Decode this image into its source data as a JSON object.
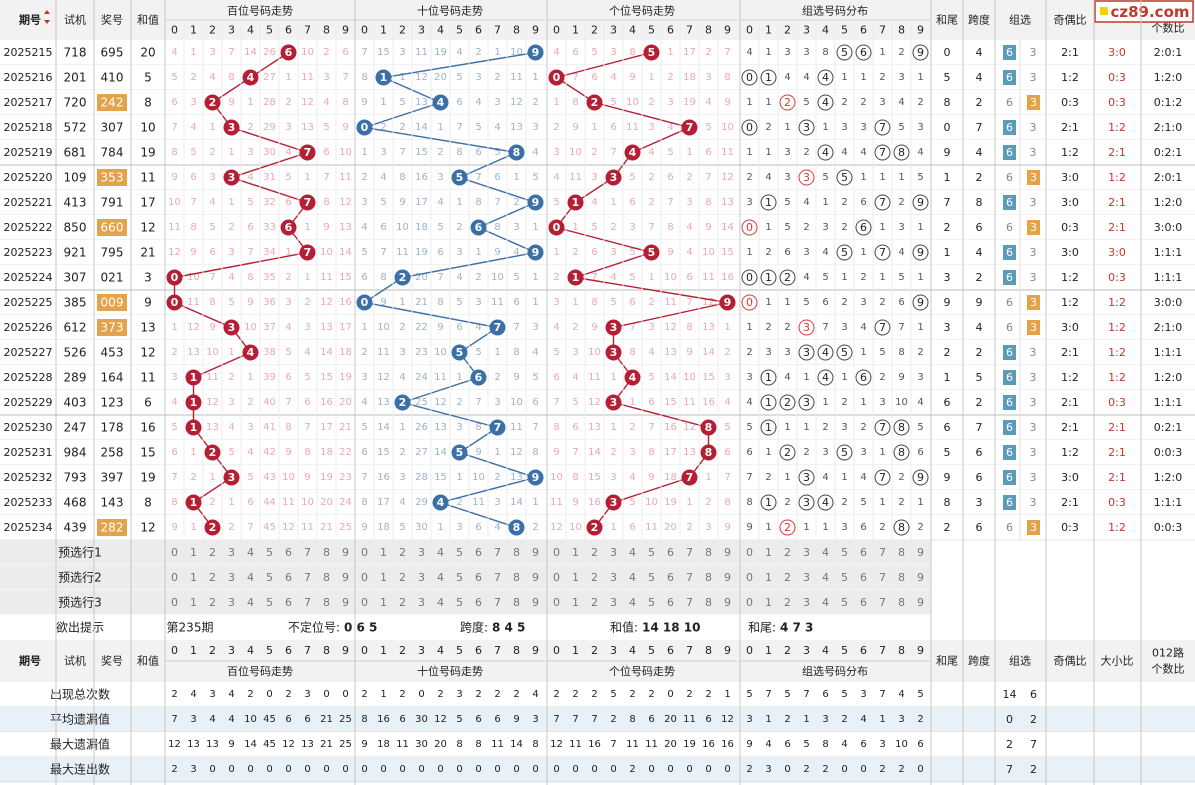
{
  "watermark": "cz89.com",
  "header_top": {
    "period": "期号",
    "trial": "试机",
    "prize": "奖号",
    "sum": "和值",
    "hundreds": "百位号码走势",
    "tens": "十位号码走势",
    "units": "个位号码走势",
    "group": "组选号码分布",
    "tail": "和尾",
    "span": "跨度",
    "group_type": "组选",
    "odd_even": "奇偶比",
    "big_small": "大小比",
    "route": "012路个数比"
  },
  "digits": [
    "0",
    "1",
    "2",
    "3",
    "4",
    "5",
    "6",
    "7",
    "8",
    "9"
  ],
  "rows": [
    {
      "p": "2025215",
      "t": "718",
      "a": "695",
      "s": "20",
      "h": [
        4,
        1,
        3,
        7,
        14,
        26,
        6,
        10,
        2,
        6
      ],
      "te": [
        7,
        15,
        3,
        11,
        19,
        4,
        2,
        1,
        10,
        9
      ],
      "u": [
        4,
        6,
        5,
        3,
        8,
        5,
        1,
        17,
        2,
        7
      ],
      "g": [
        4,
        1,
        3,
        3,
        8,
        5,
        6,
        1,
        2,
        9
      ],
      "gc": [
        5,
        6,
        9
      ],
      "tail": "0",
      "span": "4",
      "gt": "6",
      "oe": "2:1",
      "bs": "3:0",
      "r": "2:0:1"
    },
    {
      "p": "2025216",
      "t": "201",
      "a": "410",
      "s": "5",
      "h": [
        5,
        2,
        4,
        8,
        4,
        27,
        1,
        11,
        3,
        7
      ],
      "te": [
        8,
        1,
        1,
        12,
        20,
        5,
        3,
        2,
        11,
        1
      ],
      "u": [
        0,
        7,
        6,
        4,
        9,
        1,
        2,
        18,
        3,
        8
      ],
      "g": [
        0,
        1,
        4,
        4,
        4,
        1,
        1,
        2,
        3,
        1
      ],
      "gc": [
        0,
        1,
        4
      ],
      "tail": "5",
      "span": "4",
      "gt": "6",
      "oe": "1:2",
      "bs": "0:3",
      "r": "1:2:0"
    },
    {
      "p": "2025217",
      "t": "720",
      "a": "242",
      "s": "8",
      "h": [
        6,
        3,
        2,
        9,
        1,
        28,
        2,
        12,
        4,
        8
      ],
      "te": [
        9,
        1,
        5,
        13,
        4,
        6,
        4,
        3,
        12,
        2
      ],
      "u": [
        1,
        8,
        2,
        5,
        10,
        2,
        3,
        19,
        4,
        9
      ],
      "g": [
        1,
        1,
        2,
        5,
        4,
        2,
        2,
        3,
        4,
        2
      ],
      "gc": [
        2,
        4
      ],
      "tail": "8",
      "span": "2",
      "gt": "3",
      "oe": "0:3",
      "bs": "0:3",
      "r": "0:1:2",
      "hl": true
    },
    {
      "p": "2025218",
      "t": "572",
      "a": "307",
      "s": "10",
      "h": [
        7,
        4,
        1,
        3,
        2,
        29,
        3,
        13,
        5,
        9
      ],
      "te": [
        0,
        2,
        2,
        14,
        1,
        7,
        5,
        4,
        13,
        3
      ],
      "u": [
        2,
        9,
        1,
        6,
        11,
        3,
        4,
        7,
        5,
        10
      ],
      "g": [
        0,
        2,
        1,
        3,
        1,
        3,
        3,
        7,
        5,
        3
      ],
      "gc": [
        0,
        3,
        7
      ],
      "tail": "0",
      "span": "7",
      "gt": "6",
      "oe": "2:1",
      "bs": "1:2",
      "r": "2:1:0"
    },
    {
      "p": "2025219",
      "t": "681",
      "a": "784",
      "s": "19",
      "h": [
        8,
        5,
        2,
        1,
        3,
        30,
        4,
        7,
        6,
        10
      ],
      "te": [
        1,
        3,
        7,
        15,
        2,
        8,
        6,
        5,
        8,
        4
      ],
      "u": [
        3,
        10,
        2,
        7,
        4,
        4,
        5,
        1,
        6,
        11
      ],
      "g": [
        1,
        1,
        3,
        2,
        4,
        4,
        4,
        7,
        8,
        4
      ],
      "gc": [
        4,
        7,
        8
      ],
      "tail": "9",
      "span": "4",
      "gt": "6",
      "oe": "1:2",
      "bs": "2:1",
      "r": "0:2:1"
    },
    {
      "p": "2025220",
      "t": "109",
      "a": "353",
      "s": "11",
      "h": [
        9,
        6,
        3,
        3,
        4,
        31,
        5,
        1,
        7,
        11
      ],
      "te": [
        2,
        4,
        8,
        16,
        3,
        5,
        7,
        6,
        1,
        5
      ],
      "u": [
        4,
        11,
        3,
        3,
        5,
        2,
        6,
        2,
        7,
        12
      ],
      "g": [
        2,
        4,
        3,
        3,
        5,
        5,
        1,
        1,
        1,
        5
      ],
      "gc": [
        3,
        5
      ],
      "tail": "1",
      "span": "2",
      "gt": "3",
      "oe": "3:0",
      "bs": "1:2",
      "r": "2:0:1",
      "hl": true
    },
    {
      "p": "2025221",
      "t": "413",
      "a": "791",
      "s": "17",
      "h": [
        10,
        7,
        4,
        1,
        5,
        32,
        6,
        7,
        8,
        12
      ],
      "te": [
        3,
        5,
        9,
        17,
        4,
        1,
        8,
        7,
        2,
        9
      ],
      "u": [
        5,
        1,
        4,
        1,
        6,
        2,
        7,
        3,
        8,
        13
      ],
      "g": [
        3,
        1,
        5,
        4,
        1,
        2,
        6,
        7,
        2,
        9
      ],
      "gc": [
        1,
        7,
        9
      ],
      "tail": "7",
      "span": "8",
      "gt": "6",
      "oe": "3:0",
      "bs": "2:1",
      "r": "1:2:0"
    },
    {
      "p": "2025222",
      "t": "850",
      "a": "660",
      "s": "12",
      "h": [
        11,
        8,
        5,
        2,
        6,
        33,
        6,
        1,
        9,
        13
      ],
      "te": [
        4,
        6,
        10,
        18,
        5,
        2,
        6,
        8,
        3,
        1
      ],
      "u": [
        0,
        1,
        5,
        2,
        3,
        7,
        8,
        4,
        9,
        14
      ],
      "g": [
        0,
        1,
        5,
        2,
        3,
        2,
        6,
        1,
        3,
        1
      ],
      "gc": [
        0,
        6
      ],
      "tail": "2",
      "span": "6",
      "gt": "3",
      "oe": "0:3",
      "bs": "2:1",
      "r": "3:0:0",
      "hl": true
    },
    {
      "p": "2025223",
      "t": "921",
      "a": "795",
      "s": "21",
      "h": [
        12,
        9,
        6,
        3,
        7,
        34,
        1,
        7,
        10,
        14
      ],
      "te": [
        5,
        7,
        11,
        19,
        6,
        3,
        1,
        9,
        4,
        9
      ],
      "u": [
        1,
        2,
        6,
        3,
        5,
        5,
        9,
        4,
        10,
        15
      ],
      "g": [
        1,
        2,
        6,
        3,
        4,
        5,
        1,
        7,
        4,
        9
      ],
      "gc": [
        5,
        7,
        9
      ],
      "tail": "1",
      "span": "4",
      "gt": "6",
      "oe": "3:0",
      "bs": "3:0",
      "r": "1:1:1"
    },
    {
      "p": "2025224",
      "t": "307",
      "a": "021",
      "s": "3",
      "h": [
        0,
        10,
        7,
        4,
        8,
        35,
        2,
        1,
        11,
        15
      ],
      "te": [
        6,
        8,
        2,
        20,
        7,
        4,
        2,
        10,
        5,
        1
      ],
      "u": [
        2,
        1,
        7,
        4,
        5,
        1,
        10,
        6,
        11,
        16
      ],
      "g": [
        0,
        1,
        2,
        4,
        5,
        1,
        2,
        1,
        5,
        1
      ],
      "gc": [
        0,
        1,
        2
      ],
      "tail": "3",
      "span": "2",
      "gt": "6",
      "oe": "1:2",
      "bs": "0:3",
      "r": "1:1:1"
    },
    {
      "p": "2025225",
      "t": "385",
      "a": "009",
      "s": "9",
      "h": [
        0,
        11,
        8,
        5,
        9,
        36,
        3,
        2,
        12,
        16
      ],
      "te": [
        0,
        9,
        1,
        21,
        8,
        5,
        3,
        11,
        6,
        1
      ],
      "u": [
        3,
        1,
        8,
        5,
        6,
        2,
        11,
        7,
        12,
        9
      ],
      "g": [
        0,
        1,
        1,
        5,
        6,
        2,
        3,
        2,
        6,
        9
      ],
      "gc": [
        0,
        9
      ],
      "tail": "9",
      "span": "9",
      "gt": "3",
      "oe": "1:2",
      "bs": "1:2",
      "r": "3:0:0",
      "hl": true,
      "g0ring": true
    },
    {
      "p": "2025226",
      "t": "612",
      "a": "373",
      "s": "13",
      "h": [
        1,
        12,
        9,
        3,
        10,
        37,
        4,
        3,
        13,
        17
      ],
      "te": [
        1,
        10,
        2,
        22,
        9,
        6,
        4,
        7,
        7,
        3
      ],
      "u": [
        4,
        2,
        9,
        3,
        7,
        3,
        12,
        8,
        13,
        1
      ],
      "g": [
        1,
        2,
        2,
        3,
        7,
        3,
        4,
        7,
        7,
        1
      ],
      "gc": [
        3,
        7
      ],
      "tail": "3",
      "span": "4",
      "gt": "3",
      "oe": "3:0",
      "bs": "1:2",
      "r": "2:1:0",
      "hl": true
    },
    {
      "p": "2025227",
      "t": "526",
      "a": "453",
      "s": "12",
      "h": [
        2,
        13,
        10,
        1,
        4,
        38,
        5,
        4,
        14,
        18
      ],
      "te": [
        2,
        11,
        3,
        23,
        10,
        5,
        5,
        1,
        8,
        4
      ],
      "u": [
        5,
        3,
        10,
        3,
        8,
        4,
        13,
        9,
        14,
        2
      ],
      "g": [
        2,
        3,
        3,
        3,
        4,
        5,
        1,
        5,
        8,
        2
      ],
      "gc": [
        3,
        4,
        5
      ],
      "tail": "2",
      "span": "2",
      "gt": "6",
      "oe": "2:1",
      "bs": "1:2",
      "r": "1:1:1"
    },
    {
      "p": "2025228",
      "t": "289",
      "a": "164",
      "s": "11",
      "h": [
        3,
        1,
        11,
        2,
        1,
        39,
        6,
        5,
        15,
        19
      ],
      "te": [
        3,
        12,
        4,
        24,
        11,
        1,
        6,
        2,
        9,
        5
      ],
      "u": [
        6,
        4,
        11,
        1,
        4,
        5,
        14,
        10,
        15,
        3
      ],
      "g": [
        3,
        1,
        4,
        1,
        4,
        1,
        6,
        2,
        9,
        3
      ],
      "gc": [
        1,
        4,
        6
      ],
      "tail": "1",
      "span": "5",
      "gt": "6",
      "oe": "1:2",
      "bs": "1:2",
      "r": "1:2:0"
    },
    {
      "p": "2025229",
      "t": "403",
      "a": "123",
      "s": "6",
      "h": [
        4,
        1,
        12,
        3,
        2,
        40,
        7,
        6,
        16,
        20
      ],
      "te": [
        4,
        13,
        2,
        25,
        12,
        2,
        7,
        3,
        10,
        6
      ],
      "u": [
        7,
        5,
        12,
        3,
        1,
        6,
        15,
        11,
        16,
        4
      ],
      "g": [
        4,
        1,
        2,
        3,
        1,
        2,
        1,
        3,
        10,
        4
      ],
      "gc": [
        1,
        2,
        3
      ],
      "tail": "6",
      "span": "2",
      "gt": "6",
      "oe": "2:1",
      "bs": "0:3",
      "r": "1:1:1"
    },
    {
      "p": "2025230",
      "t": "247",
      "a": "178",
      "s": "16",
      "h": [
        5,
        1,
        13,
        4,
        3,
        41,
        8,
        7,
        17,
        21
      ],
      "te": [
        5,
        14,
        1,
        26,
        13,
        3,
        8,
        7,
        11,
        7
      ],
      "u": [
        8,
        6,
        13,
        1,
        2,
        7,
        16,
        12,
        8,
        5
      ],
      "g": [
        5,
        1,
        1,
        1,
        2,
        3,
        2,
        7,
        8,
        5
      ],
      "gc": [
        1,
        7,
        8
      ],
      "tail": "6",
      "span": "7",
      "gt": "6",
      "oe": "2:1",
      "bs": "2:1",
      "r": "0:2:1"
    },
    {
      "p": "2025231",
      "t": "984",
      "a": "258",
      "s": "15",
      "h": [
        6,
        1,
        2,
        5,
        4,
        42,
        9,
        8,
        18,
        22
      ],
      "te": [
        6,
        15,
        2,
        27,
        14,
        5,
        9,
        1,
        12,
        8
      ],
      "u": [
        9,
        7,
        14,
        2,
        3,
        8,
        17,
        13,
        8,
        6
      ],
      "g": [
        6,
        1,
        2,
        2,
        3,
        5,
        3,
        1,
        8,
        6
      ],
      "gc": [
        2,
        5,
        8
      ],
      "tail": "5",
      "span": "6",
      "gt": "6",
      "oe": "1:2",
      "bs": "2:1",
      "r": "0:0:3"
    },
    {
      "p": "2025232",
      "t": "793",
      "a": "397",
      "s": "19",
      "h": [
        7,
        2,
        1,
        3,
        5,
        43,
        10,
        9,
        19,
        23
      ],
      "te": [
        7,
        16,
        3,
        28,
        15,
        1,
        10,
        2,
        13,
        9
      ],
      "u": [
        10,
        8,
        15,
        3,
        4,
        9,
        18,
        7,
        1,
        7
      ],
      "g": [
        7,
        2,
        1,
        3,
        4,
        1,
        4,
        7,
        2,
        9
      ],
      "gc": [
        3,
        7,
        9
      ],
      "tail": "9",
      "span": "6",
      "gt": "6",
      "oe": "3:0",
      "bs": "2:1",
      "r": "1:2:0"
    },
    {
      "p": "2025233",
      "t": "468",
      "a": "143",
      "s": "8",
      "h": [
        8,
        1,
        2,
        1,
        6,
        44,
        11,
        10,
        20,
        24
      ],
      "te": [
        8,
        17,
        4,
        29,
        4,
        2,
        11,
        3,
        14,
        1
      ],
      "u": [
        11,
        9,
        16,
        3,
        5,
        10,
        19,
        1,
        2,
        8
      ],
      "g": [
        8,
        1,
        2,
        3,
        4,
        2,
        5,
        1,
        2,
        1
      ],
      "gc": [
        1,
        3,
        4
      ],
      "tail": "8",
      "span": "3",
      "gt": "6",
      "oe": "2:1",
      "bs": "0:3",
      "r": "1:1:1"
    },
    {
      "p": "2025234",
      "t": "439",
      "a": "282",
      "s": "12",
      "h": [
        9,
        1,
        2,
        2,
        7,
        45,
        12,
        11,
        21,
        25
      ],
      "te": [
        9,
        18,
        5,
        30,
        1,
        3,
        6,
        4,
        8,
        2
      ],
      "u": [
        12,
        10,
        2,
        1,
        6,
        11,
        20,
        2,
        3,
        9
      ],
      "g": [
        9,
        1,
        2,
        1,
        1,
        3,
        6,
        2,
        8,
        2
      ],
      "gc": [
        2,
        8
      ],
      "tail": "2",
      "span": "6",
      "gt": "3",
      "oe": "0:3",
      "bs": "1:2",
      "r": "0:0:3",
      "hl": true,
      "g2ring": true
    }
  ],
  "pre_rows": [
    "预选行1",
    "预选行2",
    "预选行3"
  ],
  "hint": {
    "label": "欲出提示",
    "period": "第235期",
    "uncertain_label": "不定位号:",
    "uncertain_value": "0 6 5",
    "span_label": "跨度:",
    "span_value": "8 4 5",
    "sum_label": "和值:",
    "sum_value": "14 18 10",
    "tail_label": "和尾:",
    "tail_value": "4 7 3"
  },
  "header_bottom": {
    "period": "期号",
    "trial": "试机",
    "prize": "奖号",
    "sum": "和值",
    "hundreds": "百位号码走势",
    "tens": "十位号码走势",
    "units": "个位号码走势",
    "group": "组选号码分布",
    "tail": "和尾",
    "span": "跨度",
    "group_type": "组选",
    "odd_even": "奇偶比",
    "big_small": "大小比",
    "route": "012路个数比"
  },
  "stats": [
    {
      "label": "出现总次数",
      "vals": [
        2,
        4,
        3,
        4,
        2,
        0,
        2,
        3,
        0,
        0,
        2,
        1,
        2,
        0,
        2,
        3,
        2,
        2,
        2,
        4,
        2,
        2,
        2,
        5,
        2,
        2,
        0,
        2,
        2,
        1,
        5,
        7,
        5,
        7,
        6,
        5,
        3,
        7,
        4,
        5
      ],
      "gt": [
        "14",
        "6"
      ],
      "hl": false
    },
    {
      "label": "平均遗漏值",
      "vals": [
        7,
        3,
        4,
        4,
        10,
        45,
        6,
        6,
        21,
        25,
        8,
        16,
        6,
        30,
        12,
        5,
        6,
        6,
        9,
        3,
        7,
        7,
        7,
        2,
        8,
        6,
        20,
        11,
        6,
        12,
        3,
        1,
        2,
        1,
        3,
        2,
        4,
        1,
        3,
        2
      ],
      "gt": [
        "0",
        "2"
      ],
      "hl": true
    },
    {
      "label": "最大遗漏值",
      "vals": [
        12,
        13,
        13,
        9,
        14,
        45,
        12,
        13,
        21,
        25,
        9,
        18,
        11,
        30,
        20,
        8,
        8,
        11,
        14,
        8,
        12,
        11,
        16,
        7,
        11,
        11,
        20,
        19,
        16,
        16,
        9,
        4,
        6,
        5,
        8,
        4,
        6,
        3,
        10,
        6
      ],
      "gt": [
        "2",
        "7"
      ],
      "hl": false
    },
    {
      "label": "最大连出数",
      "vals": [
        2,
        3,
        0,
        0,
        0,
        0,
        0,
        0,
        0,
        0,
        0,
        0,
        0,
        0,
        0,
        0,
        0,
        0,
        0,
        0,
        0,
        0,
        0,
        0,
        2,
        0,
        0,
        0,
        0,
        0,
        2,
        3,
        0,
        2,
        2,
        0,
        0,
        2,
        2,
        0
      ],
      "gt": [
        "7",
        "2"
      ],
      "hl": true
    }
  ],
  "colors": {
    "hundreds_ball": "#b51f35",
    "tens_ball": "#3a6fa8",
    "units_ball": "#b51f35",
    "hundreds_miss": "#e9a9b4",
    "tens_miss": "#9fb3c8",
    "group_type_six": "#5b9bb8",
    "group_type_three": "#e2a34b",
    "prize_highlight": "#e2a34b",
    "header_bg": "#f2f2f2"
  },
  "icons": [
    "sort-arrows-icon"
  ]
}
